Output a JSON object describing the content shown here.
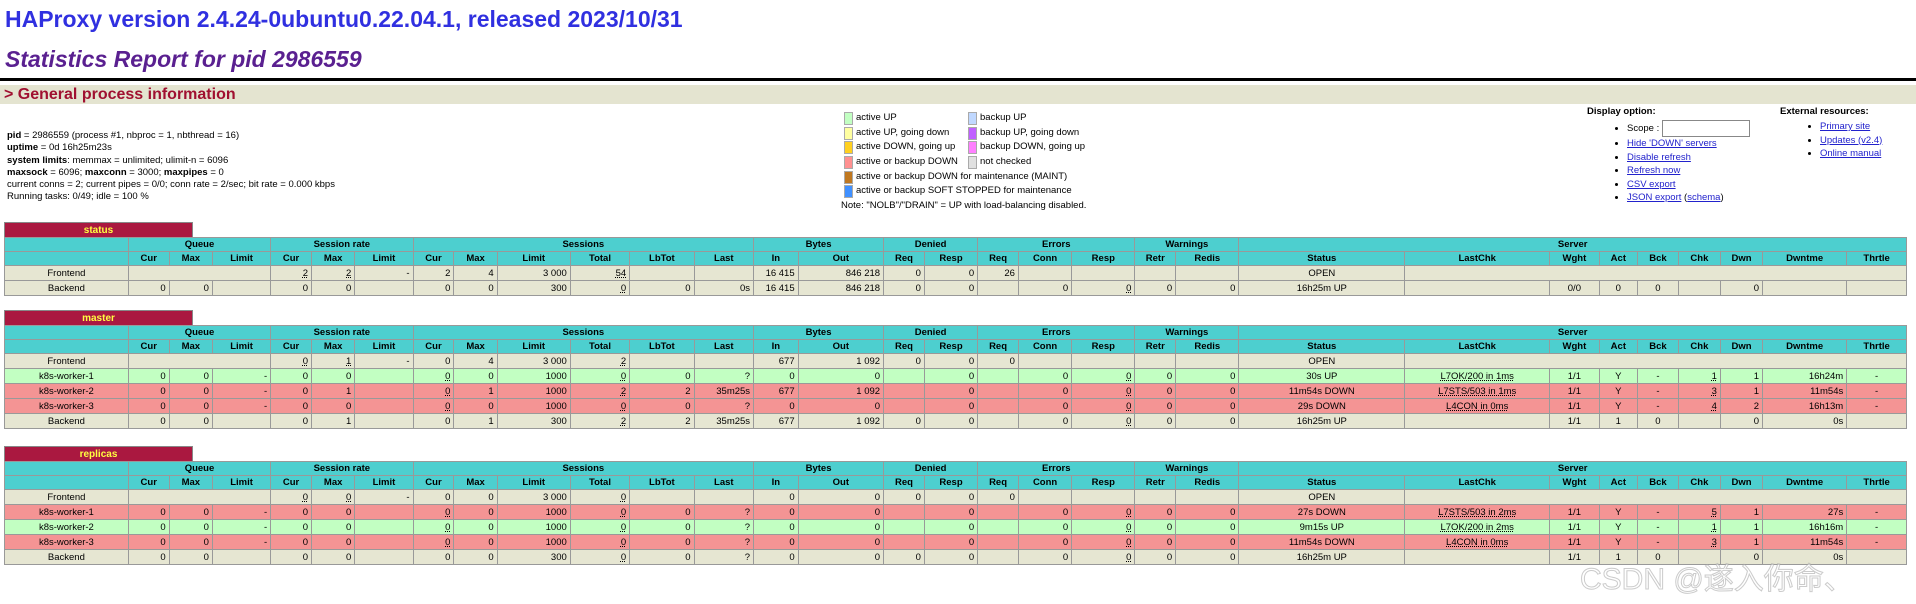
{
  "header": {
    "title": "HAProxy version 2.4.24-0ubuntu0.22.04.1, released 2023/10/31",
    "subtitle": "Statistics Report for pid 2986559",
    "section": "> General process information"
  },
  "process_info": {
    "line1_label": "pid",
    "line1_value": " = 2986559 (process #1, nbproc = 1, nbthread = 16)",
    "line2_label": "uptime",
    "line2_value": " = 0d 16h25m23s",
    "line3_label": "system limits",
    "line3_value": ": memmax = unlimited; ulimit-n = 6096",
    "line4_a": "maxsock",
    "line4_b": " = 6096; ",
    "line4_c": "maxconn",
    "line4_d": " = 3000; ",
    "line4_e": "maxpipes",
    "line4_f": " = 0",
    "line5": "current conns = 2; current pipes = 0/0; conn rate = 2/sec; bit rate = 0.000 kbps",
    "line6": "Running tasks: 0/49; idle = 100 %"
  },
  "legend": {
    "items": [
      {
        "label": "active UP",
        "color": "#c2ffc2"
      },
      {
        "label": "backup UP",
        "color": "#c0d8ff"
      },
      {
        "label": "active UP, going down",
        "color": "#ffffa0"
      },
      {
        "label": "backup UP, going down",
        "color": "#c060ff"
      },
      {
        "label": "active DOWN, going up",
        "color": "#ffd020"
      },
      {
        "label": "backup DOWN, going up",
        "color": "#ff80ff"
      },
      {
        "label": "active or backup DOWN",
        "color": "#ff9090"
      },
      {
        "label": "not checked",
        "color": "#e0e0e0"
      },
      {
        "label": "active or backup DOWN for maintenance (MAINT)",
        "color": "#c07820"
      },
      {
        "label": "active or backup SOFT STOPPED for maintenance",
        "color": "#4090ff"
      }
    ],
    "note": "Note: \"NOLB\"/\"DRAIN\" = UP with load-balancing disabled."
  },
  "display_options": {
    "title": "Display option:",
    "scope_label": "Scope :",
    "scope_value": "",
    "links": [
      "Hide 'DOWN' servers",
      "Disable refresh",
      "Refresh now",
      "CSV export",
      "JSON export"
    ],
    "schema_link": "schema"
  },
  "external_resources": {
    "title": "External resources:",
    "links": [
      "Primary site",
      "Updates (v2.4)",
      "Online manual"
    ]
  },
  "table_headers": {
    "groups": [
      "Queue",
      "Session rate",
      "Sessions",
      "Bytes",
      "Denied",
      "Errors",
      "Warnings",
      "Server"
    ],
    "cols": [
      "Cur",
      "Max",
      "Limit",
      "Cur",
      "Max",
      "Limit",
      "Cur",
      "Max",
      "Limit",
      "Total",
      "LbTot",
      "Last",
      "In",
      "Out",
      "Req",
      "Resp",
      "Req",
      "Conn",
      "Resp",
      "Retr",
      "Redis",
      "Status",
      "LastChk",
      "Wght",
      "Act",
      "Bck",
      "Chk",
      "Dwn",
      "Dwntme",
      "Thrtle"
    ]
  },
  "proxies": [
    {
      "name": "status",
      "rows": [
        {
          "type": "frontend",
          "cells": [
            "Frontend",
            "",
            "",
            "",
            "2",
            "2",
            "-",
            "2",
            "4",
            "3 000",
            "54",
            "",
            "",
            "16 415",
            "846 218",
            "0",
            "0",
            "26",
            "",
            "",
            "",
            "",
            "OPEN",
            "",
            "",
            "",
            "",
            "",
            "",
            "",
            ""
          ]
        },
        {
          "type": "backend",
          "cells": [
            "Backend",
            "0",
            "0",
            "",
            "0",
            "0",
            "",
            "0",
            "0",
            "300",
            "0",
            "0",
            "0s",
            "16 415",
            "846 218",
            "0",
            "0",
            "",
            "0",
            "0",
            "0",
            "0",
            "16h25m UP",
            "",
            "0/0",
            "0",
            "0",
            "",
            "0",
            "",
            ""
          ]
        }
      ]
    },
    {
      "name": "master",
      "rows": [
        {
          "type": "frontend",
          "cells": [
            "Frontend",
            "",
            "",
            "",
            "0",
            "1",
            "-",
            "0",
            "4",
            "3 000",
            "2",
            "",
            "",
            "677",
            "1 092",
            "0",
            "0",
            "0",
            "",
            "",
            "",
            "",
            "OPEN",
            "",
            "",
            "",
            "",
            "",
            "",
            "",
            ""
          ]
        },
        {
          "type": "up",
          "cells": [
            "k8s-worker-1",
            "0",
            "0",
            "-",
            "0",
            "0",
            "",
            "0",
            "0",
            "1000",
            "0",
            "0",
            "?",
            "0",
            "0",
            "",
            "0",
            "",
            "0",
            "0",
            "0",
            "0",
            "30s UP",
            "L7OK/200 in 1ms",
            "1/1",
            "Y",
            "-",
            "1",
            "1",
            "16h24m",
            "-"
          ]
        },
        {
          "type": "down",
          "cells": [
            "k8s-worker-2",
            "0",
            "0",
            "-",
            "0",
            "1",
            "",
            "0",
            "1",
            "1000",
            "2",
            "2",
            "35m25s",
            "677",
            "1 092",
            "",
            "0",
            "",
            "0",
            "0",
            "0",
            "0",
            "11m54s DOWN",
            "L7STS/503 in 1ms",
            "1/1",
            "Y",
            "-",
            "3",
            "1",
            "11m54s",
            "-"
          ]
        },
        {
          "type": "down",
          "cells": [
            "k8s-worker-3",
            "0",
            "0",
            "-",
            "0",
            "0",
            "",
            "0",
            "0",
            "1000",
            "0",
            "0",
            "?",
            "0",
            "0",
            "",
            "0",
            "",
            "0",
            "0",
            "0",
            "0",
            "29s DOWN",
            "L4CON in 0ms",
            "1/1",
            "Y",
            "-",
            "4",
            "2",
            "16h13m",
            "-"
          ]
        },
        {
          "type": "backend",
          "cells": [
            "Backend",
            "0",
            "0",
            "",
            "0",
            "1",
            "",
            "0",
            "1",
            "300",
            "2",
            "2",
            "35m25s",
            "677",
            "1 092",
            "0",
            "0",
            "",
            "0",
            "0",
            "0",
            "0",
            "16h25m UP",
            "",
            "1/1",
            "1",
            "0",
            "",
            "0",
            "0s",
            ""
          ]
        }
      ]
    },
    {
      "name": "replicas",
      "rows": [
        {
          "type": "frontend",
          "cells": [
            "Frontend",
            "",
            "",
            "",
            "0",
            "0",
            "-",
            "0",
            "0",
            "3 000",
            "0",
            "",
            "",
            "0",
            "0",
            "0",
            "0",
            "0",
            "",
            "",
            "",
            "",
            "OPEN",
            "",
            "",
            "",
            "",
            "",
            "",
            "",
            ""
          ]
        },
        {
          "type": "down",
          "cells": [
            "k8s-worker-1",
            "0",
            "0",
            "-",
            "0",
            "0",
            "",
            "0",
            "0",
            "1000",
            "0",
            "0",
            "?",
            "0",
            "0",
            "",
            "0",
            "",
            "0",
            "0",
            "0",
            "0",
            "27s DOWN",
            "L7STS/503 in 2ms",
            "1/1",
            "Y",
            "-",
            "5",
            "1",
            "27s",
            "-"
          ]
        },
        {
          "type": "up",
          "cells": [
            "k8s-worker-2",
            "0",
            "0",
            "-",
            "0",
            "0",
            "",
            "0",
            "0",
            "1000",
            "0",
            "0",
            "?",
            "0",
            "0",
            "",
            "0",
            "",
            "0",
            "0",
            "0",
            "0",
            "9m15s UP",
            "L7OK/200 in 2ms",
            "1/1",
            "Y",
            "-",
            "1",
            "1",
            "16h16m",
            "-"
          ]
        },
        {
          "type": "down",
          "cells": [
            "k8s-worker-3",
            "0",
            "0",
            "-",
            "0",
            "0",
            "",
            "0",
            "0",
            "1000",
            "0",
            "0",
            "?",
            "0",
            "0",
            "",
            "0",
            "",
            "0",
            "0",
            "0",
            "0",
            "11m54s DOWN",
            "L4CON in 0ms",
            "1/1",
            "Y",
            "-",
            "3",
            "1",
            "11m54s",
            "-"
          ]
        },
        {
          "type": "backend",
          "cells": [
            "Backend",
            "0",
            "0",
            "",
            "0",
            "0",
            "",
            "0",
            "0",
            "300",
            "0",
            "0",
            "?",
            "0",
            "0",
            "0",
            "0",
            "",
            "0",
            "0",
            "0",
            "0",
            "16h25m UP",
            "",
            "1/1",
            "1",
            "0",
            "",
            "0",
            "0s",
            ""
          ]
        }
      ]
    }
  ],
  "watermark": "CSDN @遂入你命、"
}
